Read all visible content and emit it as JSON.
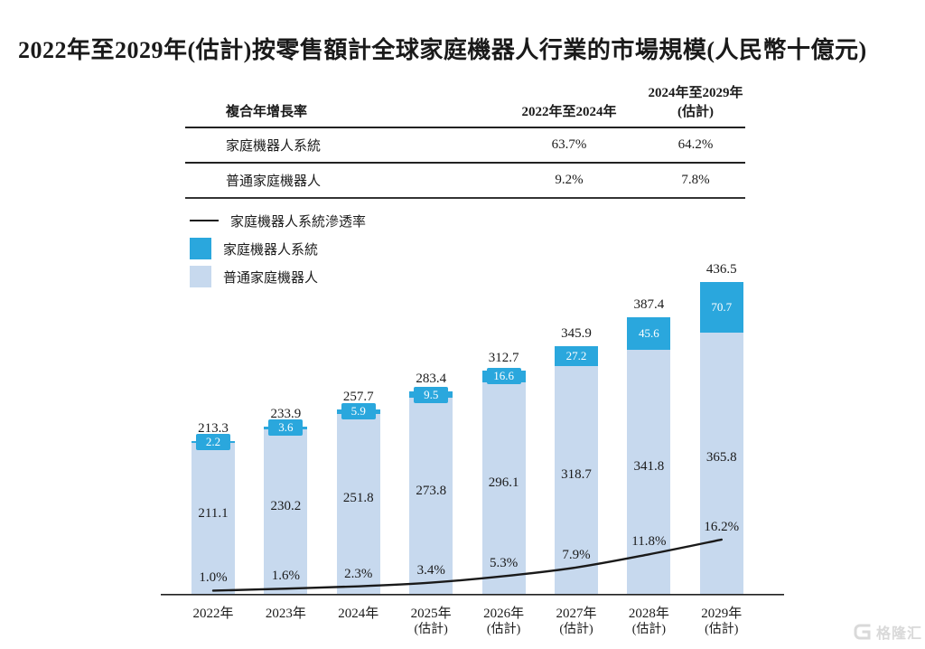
{
  "title": "2022年至2029年(估計)按零售額計全球家庭機器人行業的市場規模(人民幣十億元)",
  "table": {
    "col1_header": "複合年增長率",
    "col2_header": "2022年至2024年",
    "col3_header_line1": "2024年至2029年",
    "col3_header_line2": "(估計)",
    "rows": [
      {
        "label": "家庭機器人系統",
        "v1": "63.7%",
        "v2": "64.2%"
      },
      {
        "label": "普通家庭機器人",
        "v1": "9.2%",
        "v2": "7.8%"
      }
    ]
  },
  "legend": {
    "line_label": "家庭機器人系統滲透率",
    "blue_label": "家庭機器人系統",
    "light_label": "普通家庭機器人"
  },
  "colors": {
    "blue": "#2aa7dd",
    "light_blue": "#c7d9ee",
    "line": "#1a1a1a",
    "axis": "#222222",
    "watermark": "#d9d9d9"
  },
  "chart_data": {
    "type": "bar",
    "subtype": "stacked-bar-with-line",
    "title": "2022年至2029年(估計)按零售額計全球家庭機器人行業的市場規模(人民幣十億元)",
    "unit": "人民幣十億元",
    "ylim": [
      0,
      450
    ],
    "grid": false,
    "legend_position": "top-left",
    "categories": [
      {
        "year": "2022年",
        "note": ""
      },
      {
        "year": "2023年",
        "note": ""
      },
      {
        "year": "2024年",
        "note": ""
      },
      {
        "year": "2025年",
        "note": "(估計)"
      },
      {
        "year": "2026年",
        "note": "(估計)"
      },
      {
        "year": "2027年",
        "note": "(估計)"
      },
      {
        "year": "2028年",
        "note": "(估計)"
      },
      {
        "year": "2029年",
        "note": "(估計)"
      }
    ],
    "series": [
      {
        "name": "普通家庭機器人",
        "color": "#c7d9ee",
        "values": [
          211.1,
          230.2,
          251.8,
          273.8,
          296.1,
          318.7,
          341.8,
          365.8
        ]
      },
      {
        "name": "家庭機器人系統",
        "color": "#2aa7dd",
        "values": [
          2.2,
          3.6,
          5.9,
          9.5,
          16.6,
          27.2,
          45.6,
          70.7
        ]
      }
    ],
    "totals": [
      213.3,
      233.9,
      257.7,
      283.4,
      312.7,
      345.9,
      387.4,
      436.5
    ],
    "line": {
      "name": "家庭機器人系統滲透率",
      "values_pct": [
        1.0,
        1.6,
        2.3,
        3.4,
        5.3,
        7.9,
        11.8,
        16.2
      ],
      "labels": [
        "1.0%",
        "1.6%",
        "2.3%",
        "3.4%",
        "5.3%",
        "7.9%",
        "11.8%",
        "16.2%"
      ]
    }
  },
  "watermark": {
    "text": "格隆汇"
  }
}
